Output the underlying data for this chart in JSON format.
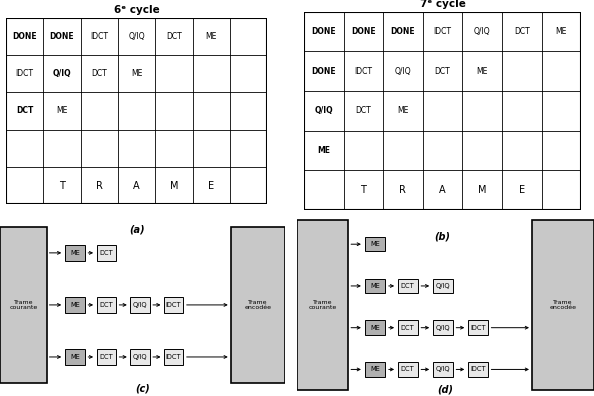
{
  "title_left": "6ᵉ cycle",
  "title_right": "7ᵉ cycle",
  "label_a": "(a)",
  "label_b": "(b)",
  "label_c": "(c)",
  "label_d": "(d)",
  "cells6": [
    [
      0,
      0,
      "DONE",
      true
    ],
    [
      0,
      1,
      "DONE",
      true
    ],
    [
      0,
      2,
      "IDCT",
      false
    ],
    [
      0,
      3,
      "Q/IQ",
      false
    ],
    [
      0,
      4,
      "DCT",
      false
    ],
    [
      0,
      5,
      "ME",
      false
    ],
    [
      1,
      0,
      "IDCT",
      false
    ],
    [
      1,
      1,
      "Q/IQ",
      true
    ],
    [
      1,
      2,
      "DCT",
      false
    ],
    [
      1,
      3,
      "ME",
      false
    ],
    [
      2,
      0,
      "DCT",
      true
    ],
    [
      2,
      1,
      "ME",
      false
    ],
    [
      4,
      1,
      "T",
      false
    ],
    [
      4,
      2,
      "R",
      false
    ],
    [
      4,
      3,
      "A",
      false
    ],
    [
      4,
      4,
      "M",
      false
    ],
    [
      4,
      5,
      "E",
      false
    ]
  ],
  "cells7": [
    [
      0,
      0,
      "DONE",
      true
    ],
    [
      0,
      1,
      "DONE",
      true
    ],
    [
      0,
      2,
      "DONE",
      true
    ],
    [
      0,
      3,
      "IDCT",
      false
    ],
    [
      0,
      4,
      "Q/IQ",
      false
    ],
    [
      0,
      5,
      "DCT",
      false
    ],
    [
      0,
      6,
      "ME",
      false
    ],
    [
      1,
      0,
      "DONE",
      true
    ],
    [
      1,
      1,
      "IDCT",
      false
    ],
    [
      1,
      2,
      "Q/IQ",
      false
    ],
    [
      1,
      3,
      "DCT",
      false
    ],
    [
      1,
      4,
      "ME",
      false
    ],
    [
      2,
      0,
      "Q/IQ",
      true
    ],
    [
      2,
      1,
      "DCT",
      false
    ],
    [
      2,
      2,
      "ME",
      false
    ],
    [
      3,
      0,
      "ME",
      true
    ],
    [
      4,
      1,
      "T",
      false
    ],
    [
      4,
      2,
      "R",
      false
    ],
    [
      4,
      3,
      "A",
      false
    ],
    [
      4,
      4,
      "M",
      false
    ],
    [
      4,
      5,
      "E",
      false
    ]
  ],
  "bg_gray": "#c8c8c8",
  "box_light": "#e8e8e8",
  "box_dark": "#b0b0b0"
}
